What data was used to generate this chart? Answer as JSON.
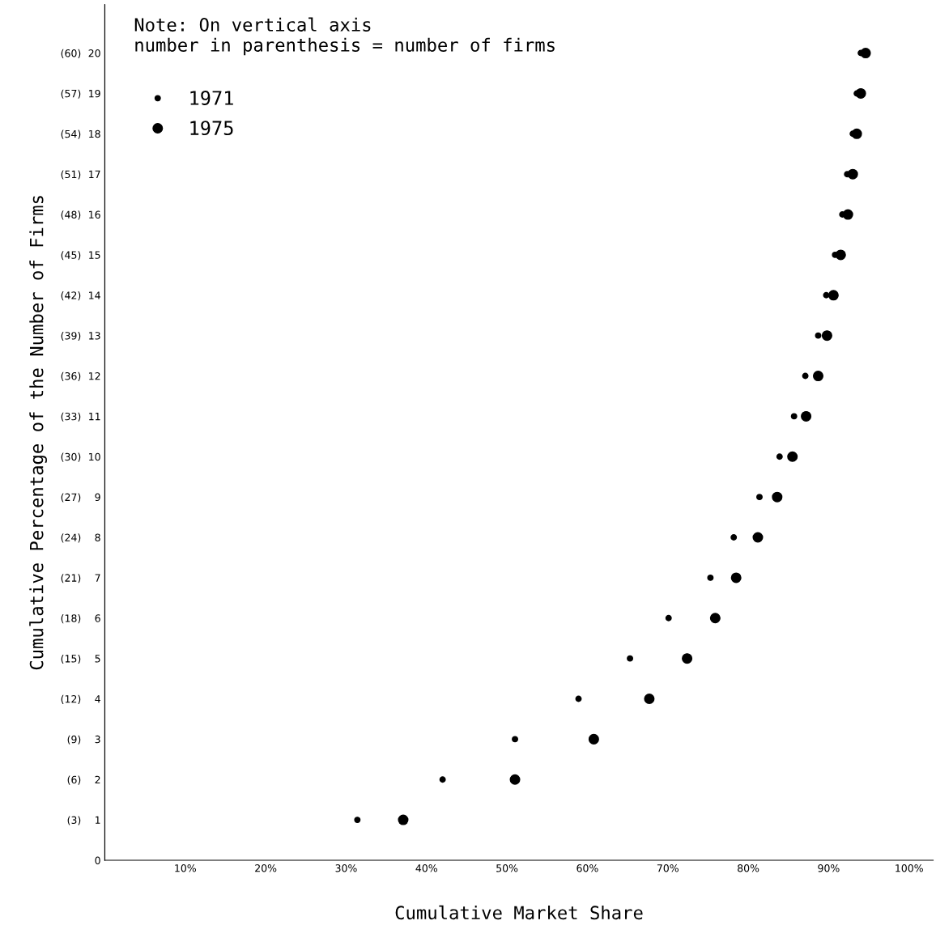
{
  "chart_data": {
    "type": "scatter",
    "xlabel": "Cumulative Market Share",
    "ylabel": "Cumulative Percentage of the Number of Firms",
    "annotations": [
      "Note: On vertical axis\nnumber in parenthesis = number of firms"
    ],
    "series": [
      {
        "name": "1971",
        "color": "#000000",
        "axis": "y2",
        "x": [
          31.4,
          42.0,
          51.0,
          58.9,
          65.3,
          70.1,
          75.3,
          78.2,
          81.4,
          83.9,
          85.7,
          87.1,
          88.7,
          89.7,
          90.8,
          91.7,
          92.3,
          93.0,
          93.5,
          94.0
        ],
        "values": [
          1,
          2,
          3,
          4,
          5,
          6,
          7,
          8,
          9,
          10,
          11,
          12,
          13,
          14,
          15,
          16,
          17,
          18,
          19,
          20
        ]
      },
      {
        "name": "1975",
        "color": "#000000",
        "axis": "y2",
        "x": [
          37.1,
          51.0,
          60.8,
          67.7,
          72.4,
          75.9,
          78.5,
          81.2,
          83.6,
          85.5,
          87.2,
          88.7,
          89.8,
          90.6,
          91.5,
          92.4,
          93.0,
          93.5,
          94.0,
          94.6
        ],
        "values": [
          1,
          2,
          3,
          4,
          5,
          6,
          7,
          8,
          9,
          10,
          11,
          12,
          13,
          14,
          15,
          16,
          17,
          18,
          19,
          20
        ]
      }
    ],
    "xlim": [
      0,
      103
    ],
    "xticks": [
      {
        "value": 10,
        "label": "10%"
      },
      {
        "value": 20,
        "label": "20%"
      },
      {
        "value": 30,
        "label": "30%"
      },
      {
        "value": 40,
        "label": "40%"
      },
      {
        "value": 50,
        "label": "50%"
      },
      {
        "value": 60,
        "label": "60%"
      },
      {
        "value": 70,
        "label": "70%"
      },
      {
        "value": 80,
        "label": "80%"
      },
      {
        "value": 90,
        "label": "90%"
      },
      {
        "value": 100,
        "label": "100%"
      }
    ],
    "ylim": [
      0,
      63.6
    ],
    "yticks": [
      {
        "value": 3,
        "label": "(3)"
      },
      {
        "value": 6,
        "label": "(6)"
      },
      {
        "value": 9,
        "label": "(9)"
      },
      {
        "value": 12,
        "label": "(12)"
      },
      {
        "value": 15,
        "label": "(15)"
      },
      {
        "value": 18,
        "label": "(18)"
      },
      {
        "value": 21,
        "label": "(21)"
      },
      {
        "value": 24,
        "label": "(24)"
      },
      {
        "value": 27,
        "label": "(27)"
      },
      {
        "value": 30,
        "label": "(30)"
      },
      {
        "value": 33,
        "label": "(33)"
      },
      {
        "value": 36,
        "label": "(36)"
      },
      {
        "value": 39,
        "label": "(39)"
      },
      {
        "value": 42,
        "label": "(42)"
      },
      {
        "value": 45,
        "label": "(45)"
      },
      {
        "value": 48,
        "label": "(48)"
      },
      {
        "value": 51,
        "label": "(51)"
      },
      {
        "value": 54,
        "label": "(54)"
      },
      {
        "value": 57,
        "label": "(57)"
      },
      {
        "value": 60,
        "label": "(60)"
      }
    ],
    "y2lim": [
      0,
      21.2
    ],
    "y2ticks": [
      0,
      1,
      2,
      3,
      4,
      5,
      6,
      7,
      8,
      9,
      10,
      11,
      12,
      13,
      14,
      15,
      16,
      17,
      18,
      19,
      20
    ],
    "grid": false,
    "legend": "top left",
    "marker": "circle"
  }
}
